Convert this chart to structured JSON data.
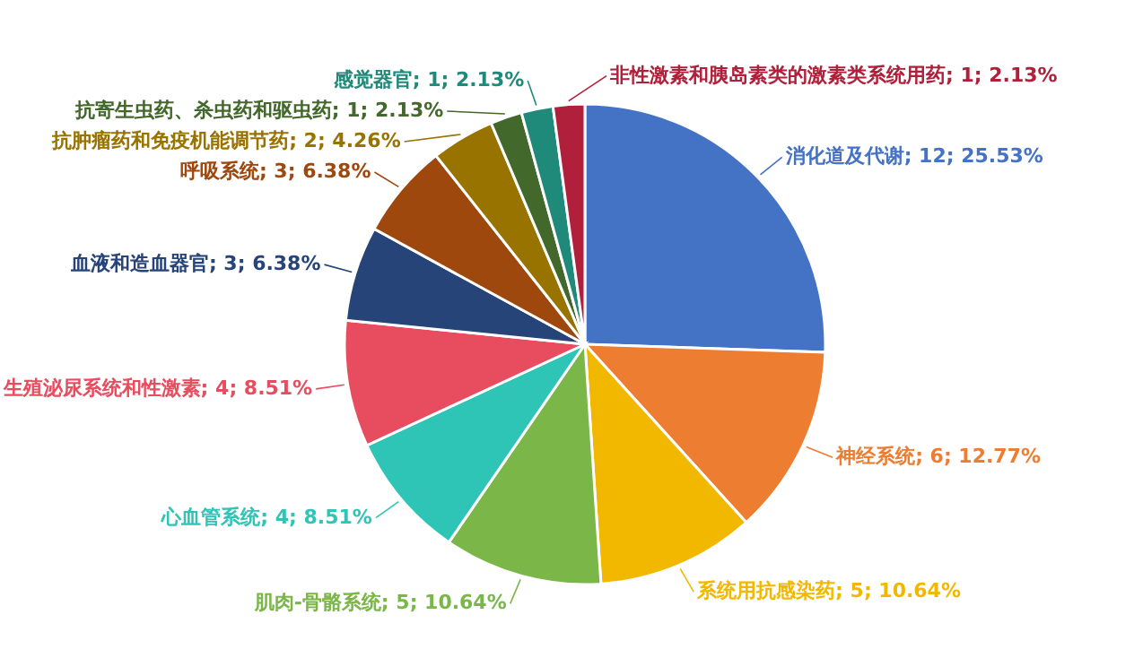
{
  "chart_data": {
    "type": "pie",
    "categories": [
      "消化道及代谢",
      "神经系统",
      "系统用抗感染药",
      "肌肉-骨骼系统",
      "心血管系统",
      "生殖泌尿系统和性激素",
      "血液和造血器官",
      "呼吸系统",
      "抗肿瘤药和免疫机能调节药",
      "抗寄生虫药、杀虫药和驱虫药",
      "感觉器官",
      "非性激素和胰岛素类的激素类系统用药"
    ],
    "values": [
      12,
      6,
      5,
      5,
      4,
      4,
      3,
      3,
      2,
      1,
      1,
      1
    ],
    "value_labels": [
      "12; 25.53%",
      "6; 12.77%",
      "5; 10.64%",
      "5; 10.64%",
      "4; 8.51%",
      "4; 8.51%",
      "3; 6.38%",
      "3; 6.38%",
      "2; 4.26%",
      "1; 2.13%",
      "1; 2.13%",
      "1; 2.13%"
    ],
    "colors": [
      "#4472c4",
      "#ed7d31",
      "#f2b800",
      "#7ab648",
      "#2ec4b6",
      "#e84c5f",
      "#264478",
      "#9e480e",
      "#997300",
      "#43682b",
      "#1f8a7a",
      "#b0203a"
    ]
  }
}
